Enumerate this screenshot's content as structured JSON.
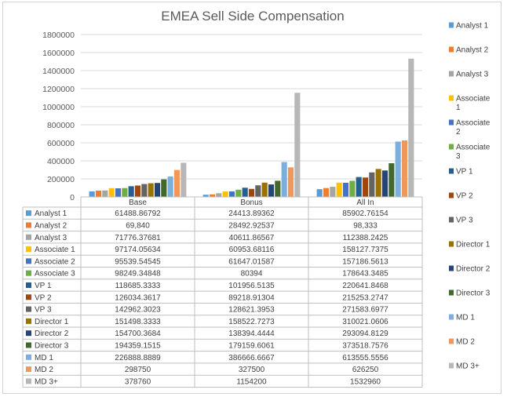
{
  "chart_data": {
    "type": "bar",
    "title": "EMEA Sell Side Compensation",
    "categories": [
      "Base",
      "Bonus",
      "All In"
    ],
    "ylim": [
      0,
      1800000
    ],
    "yticks": [
      0,
      200000,
      400000,
      600000,
      800000,
      1000000,
      1200000,
      1400000,
      1600000,
      1800000
    ],
    "ytick_labels": [
      "0",
      "200000",
      "400000",
      "600000",
      "800000",
      "1000000",
      "1200000",
      "1400000",
      "1600000",
      "1800000"
    ],
    "grid": true,
    "legend_position": "right",
    "series": [
      {
        "name": "Analyst 1",
        "color": "#5b9bd5",
        "values": [
          61488.86792,
          24413.89362,
          85902.76154
        ],
        "labels": [
          "61488.86792",
          "24413.89362",
          "85902.76154"
        ]
      },
      {
        "name": "Analyst 2",
        "color": "#ed7d31",
        "values": [
          69840,
          28492.92537,
          98333
        ],
        "labels": [
          "69,840",
          "28492.92537",
          "98,333"
        ]
      },
      {
        "name": "Analyst 3",
        "color": "#a5a5a5",
        "values": [
          71776.37681,
          40611.86567,
          112388.2425
        ],
        "labels": [
          "71776.37681",
          "40611.86567",
          "112388.2425"
        ]
      },
      {
        "name": "Associate 1",
        "color": "#ffc000",
        "values": [
          97174.05634,
          60953.68116,
          158127.7375
        ],
        "labels": [
          "97174.05634",
          "60953.68116",
          "158127.7375"
        ]
      },
      {
        "name": "Associate 2",
        "color": "#4472c4",
        "values": [
          95539.54545,
          61647.01587,
          157186.5613
        ],
        "labels": [
          "95539.54545",
          "61647.01587",
          "157186.5613"
        ]
      },
      {
        "name": "Associate 3",
        "color": "#70ad47",
        "values": [
          98249.34848,
          80394,
          178643.3485
        ],
        "labels": [
          "98249.34848",
          "80394",
          "178643.3485"
        ]
      },
      {
        "name": "VP 1",
        "color": "#255e91",
        "values": [
          118685.3333,
          101956.5135,
          220641.8468
        ],
        "labels": [
          "118685.3333",
          "101956.5135",
          "220641.8468"
        ]
      },
      {
        "name": "VP 2",
        "color": "#9e480e",
        "values": [
          126034.3617,
          89218.91304,
          215253.2747
        ],
        "labels": [
          "126034.3617",
          "89218.91304",
          "215253.2747"
        ]
      },
      {
        "name": "VP 3",
        "color": "#636363",
        "values": [
          142962.3023,
          128621.3953,
          271583.6977
        ],
        "labels": [
          "142962.3023",
          "128621.3953",
          "271583.6977"
        ]
      },
      {
        "name": "Director 1",
        "color": "#997300",
        "values": [
          151498.3333,
          158522.7273,
          310021.0606
        ],
        "labels": [
          "151498.3333",
          "158522.7273",
          "310021.0606"
        ]
      },
      {
        "name": "Director 2",
        "color": "#264478",
        "values": [
          154700.3684,
          138394.4444,
          293094.8129
        ],
        "labels": [
          "154700.3684",
          "138394.4444",
          "293094.8129"
        ]
      },
      {
        "name": "Director 3",
        "color": "#43682b",
        "values": [
          194359.1515,
          179159.6061,
          373518.7576
        ],
        "labels": [
          "194359.1515",
          "179159.6061",
          "373518.7576"
        ]
      },
      {
        "name": "MD 1",
        "color": "#7cafdd",
        "values": [
          226888.8889,
          386666.6667,
          613555.5556
        ],
        "labels": [
          "226888.8889",
          "386666.6667",
          "613555.5556"
        ]
      },
      {
        "name": "MD 2",
        "color": "#f1975a",
        "values": [
          298750,
          327500,
          626250
        ],
        "labels": [
          "298750",
          "327500",
          "626250"
        ]
      },
      {
        "name": "MD 3+",
        "color": "#b7b7b7",
        "values": [
          378760,
          1154200,
          1532960
        ],
        "labels": [
          "378760",
          "1154200",
          "1532960"
        ]
      }
    ]
  }
}
